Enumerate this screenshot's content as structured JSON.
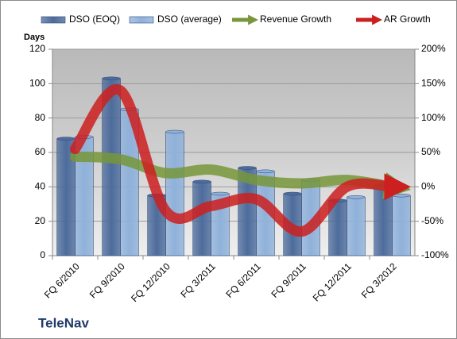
{
  "chart_data": {
    "type": "bar",
    "title": "TeleNav",
    "y_label": "Days",
    "categories": [
      "FQ 6/2010",
      "FQ 9/2010",
      "FQ 12/2010",
      "FQ 3/2011",
      "FQ 6/2011",
      "FQ 9/2011",
      "FQ 12/2011",
      "FQ 3/2012"
    ],
    "series": [
      {
        "name": "DSO (EOQ)",
        "type": "bar",
        "color": "#4d6c9c",
        "values": [
          68,
          103,
          35,
          43,
          51,
          36,
          32,
          41
        ]
      },
      {
        "name": "DSO (average)",
        "type": "bar",
        "color": "#8fb1da",
        "values": [
          69,
          85,
          72,
          36,
          49,
          44,
          34,
          35
        ]
      },
      {
        "name": "Revenue Growth",
        "type": "line",
        "axis": "y2",
        "color": "#77973a",
        "values": [
          44,
          40,
          20,
          25,
          10,
          5,
          10,
          0
        ]
      },
      {
        "name": "AR Growth",
        "type": "line",
        "axis": "y2",
        "color": "#cc1f1f",
        "values": [
          55,
          140,
          -35,
          -28,
          -18,
          -65,
          0,
          0
        ]
      }
    ],
    "ylim": [
      0,
      120
    ],
    "yticks": [
      0,
      20,
      40,
      60,
      80,
      100,
      120
    ],
    "y2lim": [
      -100,
      200
    ],
    "y2ticks": [
      {
        "value": -100,
        "label": "-100%"
      },
      {
        "value": -50,
        "label": "-50%"
      },
      {
        "value": 0,
        "label": "0%"
      },
      {
        "value": 50,
        "label": "50%"
      },
      {
        "value": 100,
        "label": "100%"
      },
      {
        "value": 150,
        "label": "150%"
      },
      {
        "value": 200,
        "label": "200%"
      }
    ],
    "grid": true
  }
}
